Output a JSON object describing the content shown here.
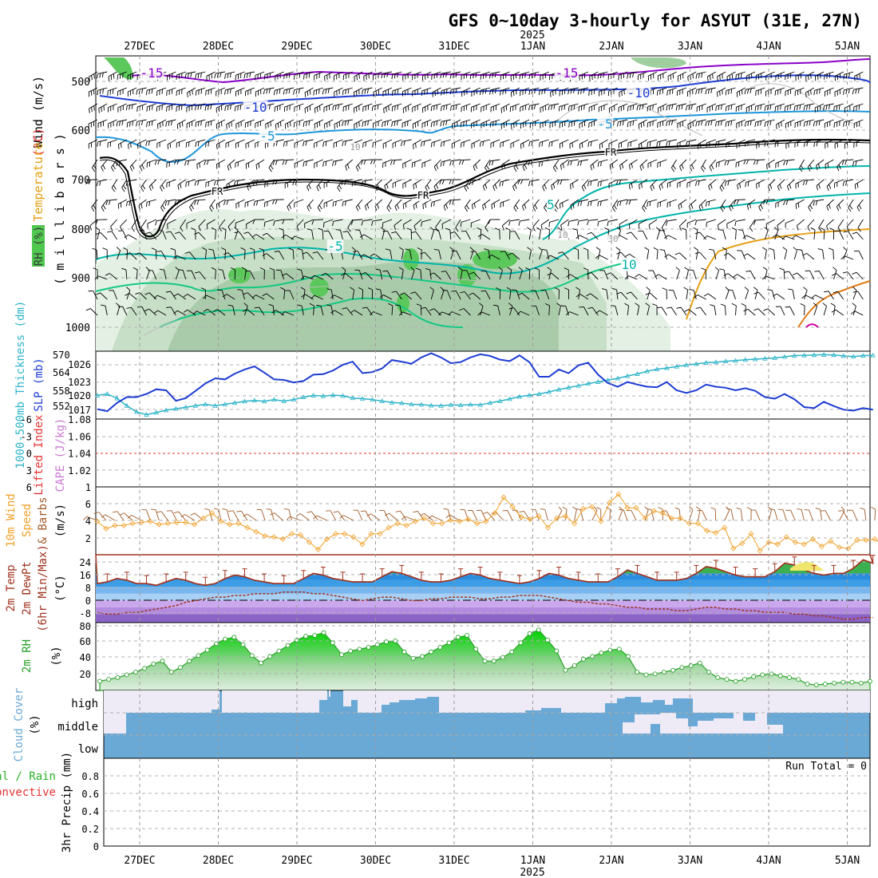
{
  "title": "GFS 0~10day 3-hourly for ASYUT (31E, 27N)",
  "colors": {
    "background": "#ffffff",
    "grid": "#b4b4b4",
    "text": "#000000",
    "wind_barb": "#000000",
    "temp_cold": "#8a00c8",
    "temp_blue": "#1e3cd2",
    "temp_cyan": "#1e96dc",
    "temp_teal": "#00b4aa",
    "temp_green": "#14c882",
    "temp_orange": "#e6a014",
    "freezing": "#000000",
    "rh_light": "#e1f0e1",
    "rh_mid": "#b9d7b9",
    "rh_green": "#50c850",
    "slp": "#1e3cd2",
    "thickness": "#2db4c8",
    "cape": "#c878d2",
    "lifted_index": "#e63232",
    "wind_speed": "#f0a028",
    "wind_barb10m": "#a05a28",
    "temp2m_line": "#a0321e",
    "dewpoint": "#a0321e",
    "rh2m": "#28a028",
    "cloud": "#6aa9d6",
    "precip_total": "#28b428",
    "precip_conv": "#e63232"
  },
  "time_axis": {
    "year_label": "2025",
    "days": [
      "27DEC",
      "28DEC",
      "29DEC",
      "30DEC",
      "31DEC",
      "1JAN",
      "2JAN",
      "3JAN",
      "4JAN",
      "5JAN"
    ]
  },
  "panels": {
    "upper": {
      "ylabel_wind": "Wind (m/s)",
      "ylabel_temp": "Temperature",
      "ylabel_temp_unit": "(°C)",
      "ylabel_rh": "RH (%)",
      "ylabel_levels": "( m i l l i b a r s )",
      "yticks": [
        "500",
        "600",
        "700",
        "800",
        "900",
        "1000"
      ],
      "contour_labels": [
        "-15",
        "-15",
        "-10",
        "-10",
        "-5",
        "-5",
        "5",
        "-5",
        "10",
        "FR",
        "FR",
        "FR",
        "10",
        "30",
        "10"
      ]
    },
    "slp": {
      "ylabel_thick": "1000-500mb Thickness (dm)",
      "ylabel_slp": "SLP (mb)",
      "thick_ticks": [
        "570",
        "564",
        "558",
        "552"
      ],
      "slp_ticks": [
        "1026",
        "1023",
        "1020",
        "1017"
      ]
    },
    "cape": {
      "ylabel_li": "Lifted Index",
      "ylabel_cape": "CAPE (J/kg)",
      "li_ticks": [
        "-6",
        "-3",
        "0",
        "3",
        "6"
      ],
      "cape_ticks": [
        "1.08",
        "1.06",
        "1.04",
        "1.02",
        "1"
      ]
    },
    "wind": {
      "ylabel_a": "10m Wind",
      "ylabel_b": "Speed",
      "ylabel_c": "& Barbs",
      "ylabel_unit": "(m/s)",
      "ticks": [
        "6",
        "4",
        "2"
      ]
    },
    "temp": {
      "ylabel_a": "2m Temp",
      "ylabel_b": "2m DewPt",
      "ylabel_c": "(6hr Min/Max)",
      "ylabel_unit": "(°C)",
      "ticks": [
        "24",
        "16",
        "8",
        "0",
        "-8"
      ]
    },
    "rh": {
      "ylabel_a": "2m RH",
      "ylabel_unit": "(%)",
      "ticks": [
        "80",
        "60",
        "40",
        "20"
      ]
    },
    "cloud": {
      "ylabel_a": "Cloud Cover",
      "ylabel_unit": "(%)",
      "levels": [
        "high",
        "middle",
        "low"
      ]
    },
    "precip": {
      "ylabel_a": "Total / Rain",
      "ylabel_b": "Convective",
      "ylabel_c": "3hr Precip (mm)",
      "ticks": [
        "0.8",
        "0.6",
        "0.4",
        "0.2",
        "0"
      ],
      "run_total": "Run Total = 0"
    }
  },
  "chart_data": [
    {
      "type": "line",
      "name": "slp",
      "ylabel": "SLP (mb)",
      "ylim": [
        1015.5,
        1028.5
      ],
      "x_days": [
        0,
        0.125,
        0.25,
        0.375,
        0.5,
        0.625,
        0.75,
        0.875,
        1,
        1.125,
        1.25,
        1.375,
        1.5,
        1.625,
        1.75,
        1.875,
        2,
        2.125,
        2.25,
        2.375,
        2.5,
        2.625,
        2.75,
        2.875,
        3,
        3.125,
        3.25,
        3.375,
        3.5,
        3.625,
        3.75,
        3.875,
        4,
        4.125,
        4.25,
        4.375,
        4.5,
        4.625,
        4.75,
        4.875,
        5,
        5.125,
        5.25,
        5.375,
        5.5,
        5.625,
        5.75,
        5.875,
        6,
        6.125,
        6.25,
        6.375,
        6.5,
        6.625,
        6.75,
        6.875,
        7,
        7.125,
        7.25,
        7.375,
        7.5,
        7.625,
        7.75,
        7.875,
        8,
        8.125,
        8.25,
        8.375,
        8.5,
        8.625,
        8.75,
        8.875,
        9,
        9.125,
        9.25,
        9.375,
        9.5,
        9.625,
        9.75,
        9.875
      ],
      "values": [
        1017.4,
        1017.0,
        1018.6,
        1019.7,
        1019.7,
        1020.3,
        1021.2,
        1021.0,
        1019.0,
        1019.5,
        1020.9,
        1022.3,
        1023.3,
        1023.1,
        1024.2,
        1025.0,
        1025.6,
        1024.4,
        1023.1,
        1023.0,
        1022.5,
        1022.8,
        1024.0,
        1024.1,
        1024.8,
        1025.9,
        1026.5,
        1024.3,
        1024.5,
        1025.2,
        1026.8,
        1026.5,
        1026.1,
        1027.3,
        1028.1,
        1027.3,
        1026.2,
        1026.4,
        1027.3,
        1027.9,
        1027.6,
        1026.9,
        1026.6,
        1027.7,
        1026.4,
        1023.6,
        1023.6,
        1025.0,
        1024.3,
        1025.8,
        1026.3,
        1024.0,
        1022.4,
        1021.7,
        1022.6,
        1022.1,
        1021.7,
        1021.6,
        1022.6,
        1021.0,
        1020.5,
        1021.0,
        1022.1,
        1021.7,
        1021.5,
        1021.0,
        1021.4,
        1020.9,
        1019.7,
        1019.4,
        1020.3,
        1019.3,
        1017.8,
        1017.6,
        1018.8,
        1018.0,
        1017.3,
        1017.1,
        1017.6,
        1017.3
      ]
    },
    {
      "type": "line",
      "name": "thickness",
      "ylabel": "1000-500mb Thickness (dm)",
      "ylim": [
        548,
        571
      ],
      "x_days": [
        0,
        0.125,
        0.25,
        0.375,
        0.5,
        0.625,
        0.75,
        0.875,
        1,
        1.125,
        1.25,
        1.375,
        1.5,
        1.625,
        1.75,
        1.875,
        2,
        2.125,
        2.25,
        2.375,
        2.5,
        2.625,
        2.75,
        2.875,
        3,
        3.125,
        3.25,
        3.375,
        3.5,
        3.625,
        3.75,
        3.875,
        4,
        4.125,
        4.25,
        4.375,
        4.5,
        4.625,
        4.75,
        4.875,
        5,
        5.125,
        5.25,
        5.375,
        5.5,
        5.625,
        5.75,
        5.875,
        6,
        6.125,
        6.25,
        6.375,
        6.5,
        6.625,
        6.75,
        6.875,
        7,
        7.125,
        7.25,
        7.375,
        7.5,
        7.625,
        7.75,
        7.875,
        8,
        8.125,
        8.25,
        8.375,
        8.5,
        8.625,
        8.75,
        8.875,
        9,
        9.125,
        9.25,
        9.375,
        9.5,
        9.625,
        9.75,
        9.875
      ],
      "values": [
        556,
        556.5,
        555,
        552.5,
        550.4,
        549.5,
        550.2,
        551,
        551.5,
        552,
        552.5,
        553,
        552.5,
        553,
        553.5,
        554,
        554.3,
        554,
        554.6,
        554.1,
        554.6,
        555.4,
        556,
        555.8,
        556.1,
        555.9,
        555.1,
        554.9,
        554.6,
        554.1,
        553.6,
        553.4,
        553,
        552.9,
        552.6,
        552.5,
        552.8,
        552.7,
        552.9,
        552.8,
        553.5,
        554.1,
        554.8,
        555.6,
        556.1,
        556.5,
        557.2,
        558,
        558.7,
        559.3,
        560,
        560.6,
        561.2,
        561.8,
        562.6,
        563.3,
        564.2,
        564.9,
        565.3,
        565.8,
        566.3,
        566.7,
        567.1,
        567.3,
        567.6,
        567.8,
        568.1,
        568.3,
        568.5,
        568.7,
        569.1,
        569.5,
        569.6,
        569.7,
        569.8,
        569.7,
        569.4,
        569.2,
        569.5,
        569.6
      ]
    },
    {
      "type": "line",
      "name": "10m wind speed",
      "ylabel": "m/s",
      "ylim": [
        1,
        7.5
      ],
      "values": [
        4.2,
        3.5,
        3.8,
        3.8,
        4.0,
        4.1,
        4.2,
        3.9,
        4.0,
        4.1,
        4.1,
        3.9,
        4.5,
        5.0,
        4.2,
        3.9,
        4.0,
        3.6,
        3.2,
        2.8,
        2.7,
        2.5,
        3.0,
        2.9,
        2.2,
        1.5,
        2.5,
        3.0,
        3.0,
        2.7,
        2.0,
        3.0,
        3.0,
        3.6,
        4.0,
        3.8,
        4.2,
        4.5,
        4.0,
        4.0,
        4.3,
        4.2,
        4.4,
        4.0,
        4.2,
        5.0,
        6.5,
        5.6,
        4.6,
        4.4,
        4.7,
        3.6,
        4.5,
        4.7,
        4.0,
        5.4,
        5.6,
        4.2,
        6.0,
        6.8,
        5.5,
        5.5,
        4.5,
        5.2,
        5.0,
        4.5,
        4.5,
        4.0,
        4.0,
        3.3,
        3.1,
        3.6,
        1.6,
        2.1,
        3.0,
        1.4,
        2.2,
        2.0,
        2.7,
        2.2,
        2.0,
        2.5,
        1.8,
        2.3,
        1.7,
        1.6,
        2.4,
        2.4,
        2.5,
        1.8,
        1.7
      ]
    },
    {
      "type": "area",
      "name": "2m temperature",
      "ylabel": "°C",
      "ylim": [
        -13,
        27
      ],
      "x_days": [
        0,
        0.125,
        0.25,
        0.375,
        0.5,
        0.625,
        0.75,
        0.875,
        1,
        1.125,
        1.25,
        1.375,
        1.5,
        1.625,
        1.75,
        1.875,
        2,
        2.125,
        2.25,
        2.375,
        2.5,
        2.625,
        2.75,
        2.875,
        3,
        3.125,
        3.25,
        3.375,
        3.5,
        3.625,
        3.75,
        3.875,
        4,
        4.125,
        4.25,
        4.375,
        4.5,
        4.625,
        4.75,
        4.875,
        5,
        5.125,
        5.25,
        5.375,
        5.5,
        5.625,
        5.75,
        5.875,
        6,
        6.125,
        6.25,
        6.375,
        6.5,
        6.625,
        6.75,
        6.875,
        7,
        7.125,
        7.25,
        7.375,
        7.5,
        7.625,
        7.75,
        7.875,
        8,
        8.125,
        8.25,
        8.375,
        8.5,
        8.625,
        8.75,
        8.875,
        9,
        9.125,
        9.25,
        9.375,
        9.5,
        9.625,
        9.75,
        9.875
      ],
      "values": [
        10,
        11,
        13,
        12,
        10,
        10,
        9,
        11,
        13,
        12,
        10,
        9,
        10,
        13,
        15,
        14,
        12,
        11,
        10,
        10,
        10,
        13,
        16,
        15,
        13,
        12,
        11,
        11,
        11,
        14,
        17,
        16,
        14,
        12,
        11,
        11,
        12,
        14,
        16,
        15,
        13,
        12,
        11,
        10,
        11,
        13,
        16,
        15,
        13,
        12,
        11,
        11,
        11,
        14,
        18,
        16,
        14,
        12,
        12,
        12,
        13,
        16,
        20,
        19,
        17,
        15,
        14,
        14,
        14,
        17,
        22,
        21,
        18,
        16,
        15,
        16,
        16,
        19,
        24,
        22
      ]
    },
    {
      "type": "line",
      "name": "2m dewpoint",
      "ylabel": "°C",
      "ylim": [
        -13,
        27
      ],
      "values": [
        -7,
        -8,
        -8,
        -7,
        -7,
        -6,
        -5,
        -4,
        -3,
        -1,
        0,
        1,
        2,
        2,
        3,
        3,
        4,
        4,
        4,
        5,
        5,
        5,
        4,
        4,
        3,
        2,
        1,
        0,
        1,
        2,
        2,
        1,
        0,
        0,
        1,
        1,
        2,
        2,
        2,
        1,
        1,
        2,
        2,
        3,
        3,
        3,
        2,
        1,
        0,
        -1,
        -1,
        -2,
        -2,
        -3,
        -4,
        -4,
        -5,
        -5,
        -5,
        -6,
        -6,
        -5,
        -4,
        -4,
        -5,
        -5,
        -6,
        -6,
        -7,
        -7,
        -7,
        -8,
        -8,
        -9,
        -9,
        -10,
        -11,
        -11,
        -10,
        -10
      ]
    },
    {
      "type": "area",
      "name": "2m RH",
      "ylabel": "%",
      "ylim": [
        8,
        82
      ],
      "values": [
        18,
        20,
        22,
        25,
        28,
        32,
        37,
        40,
        28,
        33,
        40,
        46,
        52,
        59,
        64,
        66,
        58,
        46,
        38,
        45,
        51,
        57,
        63,
        67,
        68,
        71,
        60,
        47,
        51,
        53,
        55,
        58,
        61,
        62,
        50,
        43,
        45,
        50,
        55,
        60,
        66,
        68,
        53,
        40,
        40,
        44,
        50,
        60,
        70,
        74,
        63,
        51,
        30,
        35,
        42,
        45,
        49,
        52,
        53,
        45,
        28,
        25,
        26,
        28,
        30,
        33,
        35,
        38,
        28,
        22,
        20,
        18,
        20,
        23,
        25,
        26,
        24,
        22,
        20,
        15,
        14,
        15,
        16,
        17,
        17,
        16,
        18
      ]
    },
    {
      "type": "bar",
      "name": "3hr precip",
      "ylabel": "3hr Precip (mm)",
      "ylim": [
        0,
        1
      ],
      "values": [],
      "run_total": 0
    }
  ]
}
